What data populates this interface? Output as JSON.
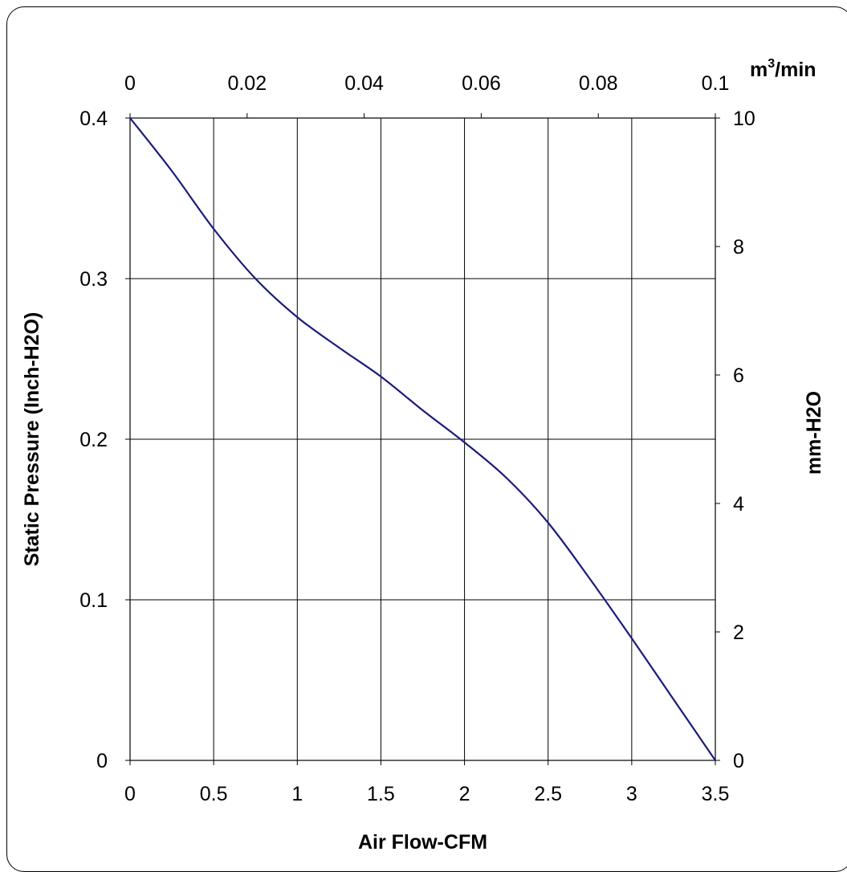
{
  "chart_data": {
    "type": "line",
    "xlabel": "Air Flow-CFM",
    "ylabel": "Static Pressure (Inch-H2O)",
    "y2label": "mm-H2O",
    "x2unit_base": "m",
    "x2unit_sup": "3",
    "x2unit_rest": "/min",
    "xlim": [
      0,
      3.5
    ],
    "ylim": [
      0,
      0.4
    ],
    "x2lim": [
      0,
      0.1
    ],
    "y2lim": [
      0,
      10
    ],
    "xticks": [
      "0",
      "0.5",
      "1",
      "1.5",
      "2",
      "2.5",
      "3",
      "3.5"
    ],
    "yticks": [
      "0",
      "0.1",
      "0.2",
      "0.3",
      "0.4"
    ],
    "x2ticks": [
      "0",
      "0.02",
      "0.04",
      "0.06",
      "0.08",
      "0.1"
    ],
    "y2ticks": [
      "0",
      "2",
      "4",
      "6",
      "8",
      "10"
    ],
    "grid": true,
    "series": [
      {
        "color": "#1a1a80",
        "x": [
          0,
          0.25,
          0.5,
          0.75,
          1.0,
          1.25,
          1.5,
          1.75,
          2.0,
          2.25,
          2.5,
          2.75,
          3.0,
          3.25,
          3.5
        ],
        "y": [
          0.4,
          0.367,
          0.331,
          0.3,
          0.276,
          0.257,
          0.239,
          0.218,
          0.198,
          0.176,
          0.148,
          0.113,
          0.076,
          0.038,
          0.0
        ]
      }
    ]
  }
}
